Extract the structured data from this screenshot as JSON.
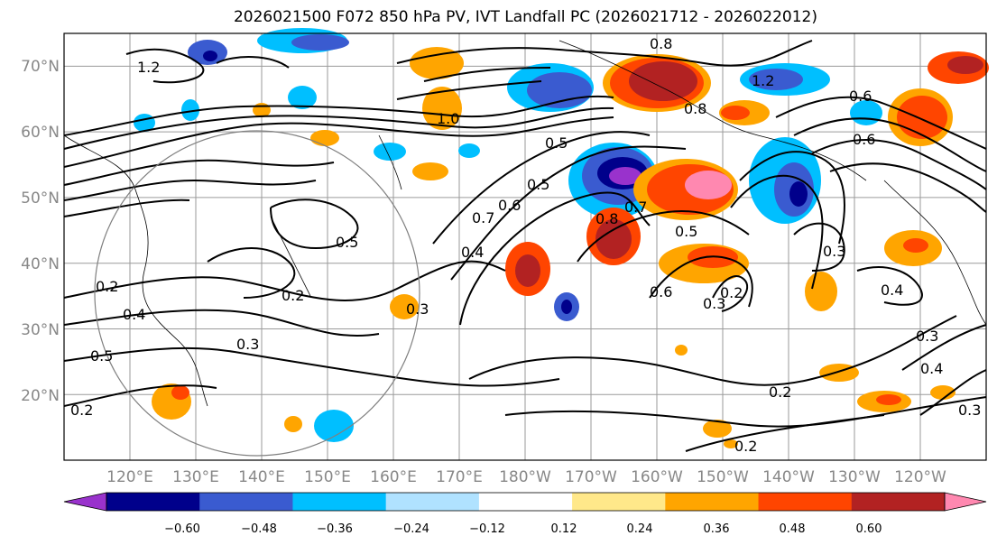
{
  "title": "2026021500 F072 850 hPa PV, IVT Landfall PC (2026021712 - 2026022012)",
  "map": {
    "lon_range": [
      110,
      250
    ],
    "lat_range": [
      10,
      75
    ],
    "lat_labels": [
      "20°N",
      "30°N",
      "40°N",
      "50°N",
      "60°N",
      "70°N"
    ],
    "lon_labels": [
      "120°E",
      "130°E",
      "140°E",
      "150°E",
      "160°E",
      "170°E",
      "180°W",
      "170°W",
      "160°W",
      "150°W",
      "140°W",
      "130°W",
      "120°W"
    ]
  },
  "colorbar": {
    "labels": [
      "−0.60",
      "−0.48",
      "−0.36",
      "−0.24",
      "−0.12",
      "0.12",
      "0.24",
      "0.36",
      "0.48",
      "0.60"
    ],
    "colors": [
      "#9932cc",
      "#00008b",
      "#3a5bd0",
      "#00bfff",
      "#b0e2ff",
      "#ffffff",
      "#ffe88a",
      "#ffa500",
      "#ff4500",
      "#b22222",
      "#ff88b0"
    ]
  },
  "contour_labels": [
    "1.2",
    "0.8",
    "1.2",
    "0.6",
    "0.8",
    "1.0",
    "0.5",
    "0.6",
    "0.5",
    "0.7",
    "0.6",
    "0.8",
    "0.7",
    "0.5",
    "0.5",
    "0.4",
    "0.3",
    "0.2",
    "0.2",
    "0.2",
    "0.6",
    "0.2",
    "0.3",
    "0.3",
    "0.4",
    "0.3",
    "0.4",
    "0.5",
    "0.3",
    "0.2",
    "0.2",
    "0.3",
    "0.4"
  ]
}
